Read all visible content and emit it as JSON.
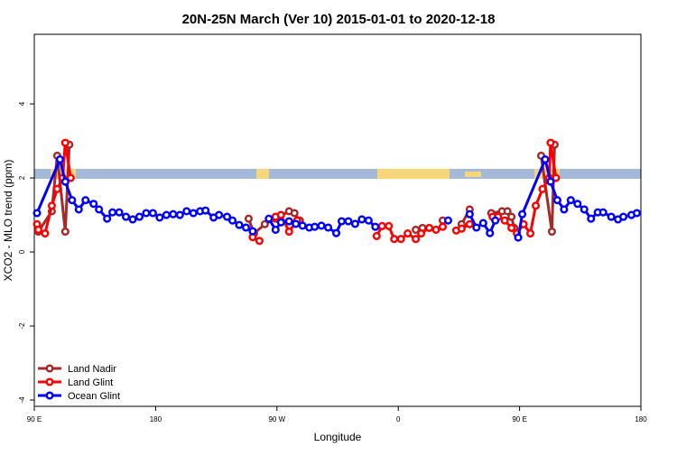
{
  "chart_data": {
    "type": "line",
    "title": "20N-25N March (Ver 10)   2015-01-01 to 2020-12-18",
    "xlabel": "Longitude",
    "ylabel": "XCO2 - MLO trend (ppm)",
    "xlim": [
      90,
      540
    ],
    "ylim": [
      -4.17,
      5.88
    ],
    "xticks": [
      {
        "value": 90,
        "label": "90 E"
      },
      180,
      {
        "value": 270,
        "label": "90 W"
      },
      {
        "value": 360,
        "label": "0"
      },
      {
        "value": 450,
        "label": "90 E"
      },
      {
        "value": 540,
        "label": "180"
      }
    ],
    "yticks": [
      -4,
      -2,
      0,
      2,
      4
    ],
    "legend": "bottom-left",
    "series": [
      {
        "name": "Land Nadir",
        "color": "#a52a2a",
        "x": [
          93,
          103,
          107,
          113,
          116,
          null,
          249,
          253,
          261,
          269,
          279,
          283,
          287,
          null,
          373,
          378,
          null,
          393,
          null,
          407,
          413,
          null,
          429,
          437,
          441,
          444,
          446,
          null,
          466,
          474,
          476
        ],
        "values": [
          0.55,
          1.1,
          2.6,
          0.55,
          2.9,
          null,
          0.9,
          0.5,
          0.75,
          0.9,
          1.1,
          1.05,
          0.85,
          null,
          0.6,
          0.65,
          null,
          0.85,
          null,
          0.75,
          1.15,
          null,
          1.05,
          1.1,
          1.1,
          0.95,
          0.65,
          null,
          2.6,
          0.55,
          2.9
        ]
      },
      {
        "name": "Land Glint",
        "color": "#ff0000",
        "x": [
          92,
          93,
          98,
          103,
          107,
          111,
          113,
          117,
          null,
          252,
          257,
          null,
          269,
          273,
          279,
          285,
          null,
          344,
          348,
          353,
          357,
          362,
          367,
          373,
          377,
          383,
          388,
          393,
          null,
          403,
          407,
          413,
          null,
          430,
          434,
          439,
          444,
          448,
          453,
          458,
          462,
          467,
          472,
          473,
          477
        ],
        "values": [
          0.75,
          0.6,
          0.5,
          1.25,
          1.7,
          2.0,
          2.95,
          2.0,
          null,
          0.4,
          0.3,
          null,
          0.95,
          1.0,
          0.55,
          0.85,
          null,
          0.43,
          0.7,
          0.7,
          0.35,
          0.35,
          0.5,
          0.35,
          0.5,
          0.65,
          0.6,
          0.68,
          null,
          0.58,
          0.63,
          0.75,
          null,
          0.95,
          0.95,
          0.85,
          0.65,
          0.5,
          0.75,
          0.5,
          1.25,
          1.7,
          2.0,
          2.95,
          2.0
        ]
      },
      {
        "name": "Ocean Glint",
        "color": "#0000ff",
        "x": [
          92,
          109,
          113,
          118,
          123,
          128,
          134,
          138,
          144,
          148,
          153,
          158,
          163,
          168,
          173,
          178,
          183,
          188,
          193,
          198,
          203,
          208,
          213,
          217,
          223,
          227,
          233,
          237,
          242,
          247,
          252,
          null,
          264,
          269,
          273,
          279,
          284,
          289,
          294,
          298,
          303,
          308,
          314,
          318,
          323,
          328,
          333,
          338,
          343,
          null,
          397,
          null,
          413,
          418,
          423,
          428,
          432,
          null,
          449,
          452,
          469,
          473,
          478,
          483,
          488,
          493,
          498,
          503,
          508,
          512,
          518,
          523,
          527,
          533,
          537
        ],
        "values": [
          1.05,
          2.5,
          1.9,
          1.4,
          1.15,
          1.4,
          1.3,
          1.15,
          0.9,
          1.07,
          1.07,
          0.95,
          0.88,
          0.95,
          1.05,
          1.05,
          0.93,
          1.0,
          1.02,
          1.0,
          1.1,
          1.05,
          1.1,
          1.12,
          0.93,
          1.0,
          0.95,
          0.85,
          0.73,
          0.66,
          0.56,
          null,
          0.9,
          0.6,
          0.8,
          0.83,
          0.76,
          0.71,
          0.66,
          0.68,
          0.71,
          0.66,
          0.51,
          0.83,
          0.83,
          0.76,
          0.88,
          0.85,
          0.68,
          null,
          0.85,
          null,
          1.02,
          0.66,
          0.78,
          0.51,
          0.85,
          null,
          0.39,
          1.02,
          2.5,
          1.9,
          1.4,
          1.15,
          1.4,
          1.3,
          1.15,
          0.9,
          1.07,
          1.07,
          0.95,
          0.88,
          0.95,
          1.0,
          1.05
        ]
      }
    ]
  }
}
